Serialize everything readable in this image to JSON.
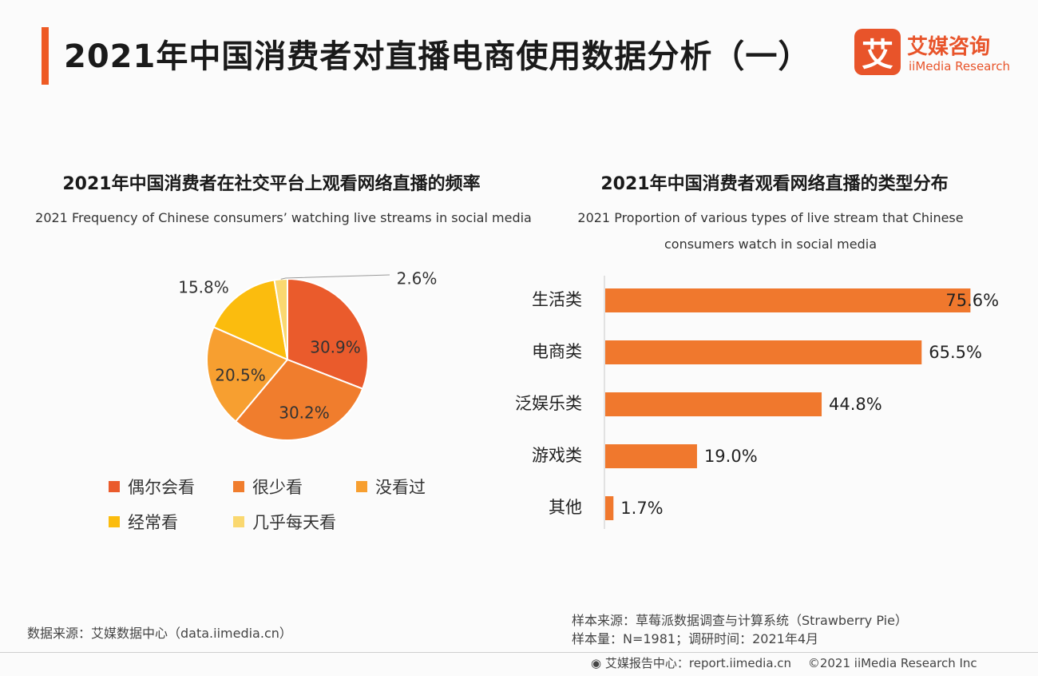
{
  "header": {
    "title": "2021年中国消费者对直播电商使用数据分析（一）",
    "logo_cn": "艾媒咨询",
    "logo_en": "iiMedia Research",
    "logo_mark": "艾"
  },
  "colors": {
    "accent": "#ee5a24",
    "bar": "#f0782d"
  },
  "chart_data": [
    {
      "type": "pie",
      "title": "2021年中国消费者在社交平台上观看网络直播的频率",
      "subtitle": "2021 Frequency of Chinese consumers’  watching live streams in social media",
      "slices": [
        {
          "label": "偶尔会看",
          "value": 30.9,
          "display": "30.9%",
          "color": "#ea5b2c"
        },
        {
          "label": "很少看",
          "value": 30.2,
          "display": "30.2%",
          "color": "#f07d2d"
        },
        {
          "label": "没看过",
          "value": 20.5,
          "display": "20.5%",
          "color": "#f79f30"
        },
        {
          "label": "经常看",
          "value": 15.8,
          "display": "15.8%",
          "color": "#fbbc0e"
        },
        {
          "label": "几乎每天看",
          "value": 2.6,
          "display": "2.6%",
          "color": "#fad870"
        }
      ]
    },
    {
      "type": "bar",
      "orientation": "horizontal",
      "title": "2021年中国消费者观看网络直播的类型分布",
      "subtitle": "2021 Proportion of various types of live stream that Chinese consumers watch in social media",
      "categories": [
        "生活类",
        "电商类",
        "泛娱乐类",
        "游戏类",
        "其他"
      ],
      "values": [
        75.6,
        65.5,
        44.8,
        19.0,
        1.7
      ],
      "labels": [
        "75.6%",
        "65.5%",
        "44.8%",
        "19.0%",
        "1.7%"
      ],
      "unit": "%"
    }
  ],
  "footer": {
    "source": "数据来源：艾媒数据中心（data.iimedia.cn）",
    "sample_source": "样本来源：草莓派数据调查与计算系统（Strawberry Pie）",
    "sample_size": "样本量：N=1981；调研时间：2021年4月",
    "report_center": "艾媒报告中心：report.iimedia.cn",
    "copyright": "©2021  iiMedia Research  Inc"
  }
}
